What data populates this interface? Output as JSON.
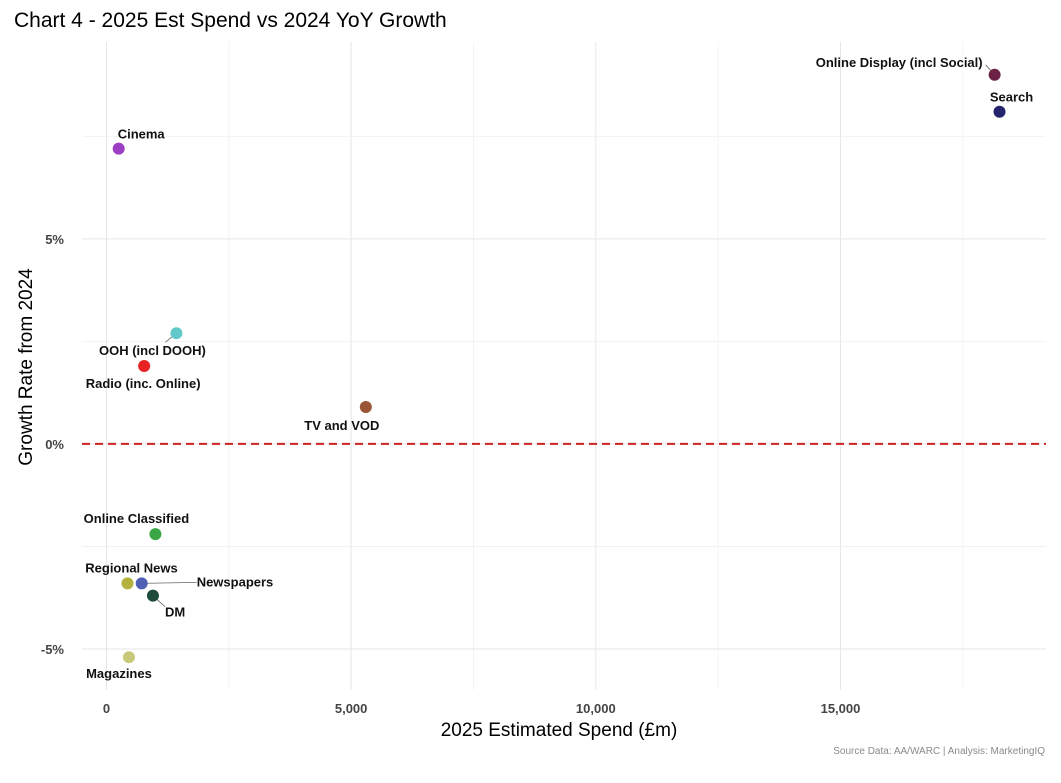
{
  "title": "Chart 4 - 2025 Est Spend vs 2024 YoY Growth",
  "source": "Source Data: AA/WARC | Analysis: MarketingIQ",
  "chart_data": {
    "type": "scatter",
    "xlabel": "2025 Estimated Spend (£m)",
    "ylabel": "Growth Rate from 2024",
    "xlim": [
      -500,
      19200
    ],
    "ylim": [
      -6.0,
      9.8
    ],
    "x_ticks": [
      0,
      5000,
      10000,
      15000
    ],
    "x_tick_labels": [
      "0",
      "5,000",
      "10,000",
      "15,000"
    ],
    "y_ticks": [
      -5,
      0,
      5
    ],
    "y_tick_labels": [
      "-5%",
      "0%",
      "5%"
    ],
    "grid": true,
    "reference_line": {
      "y": 0,
      "color": "#cc2222",
      "style": "dashed"
    },
    "points": [
      {
        "name": "Online Display (incl Social)",
        "x": 18150,
        "y": 9.0,
        "color": "#6b2046"
      },
      {
        "name": "Search",
        "x": 18250,
        "y": 8.1,
        "color": "#23236e"
      },
      {
        "name": "Cinema",
        "x": 250,
        "y": 7.2,
        "color": "#9b3fc4"
      },
      {
        "name": "OOH (incl DOOH)",
        "x": 1430,
        "y": 2.7,
        "color": "#62c8c8"
      },
      {
        "name": "Radio (inc. Online)",
        "x": 770,
        "y": 1.9,
        "color": "#e62222"
      },
      {
        "name": "TV and VOD",
        "x": 5300,
        "y": 0.9,
        "color": "#9a5535"
      },
      {
        "name": "Online Classified",
        "x": 1000,
        "y": -2.2,
        "color": "#3aa645"
      },
      {
        "name": "Regional News",
        "x": 430,
        "y": -3.4,
        "color": "#b4b23c"
      },
      {
        "name": "Newspapers",
        "x": 720,
        "y": -3.4,
        "color": "#5060b4"
      },
      {
        "name": "DM",
        "x": 950,
        "y": -3.7,
        "color": "#1e4a3c"
      },
      {
        "name": "Magazines",
        "x": 460,
        "y": -5.2,
        "color": "#c8c87a"
      }
    ]
  }
}
